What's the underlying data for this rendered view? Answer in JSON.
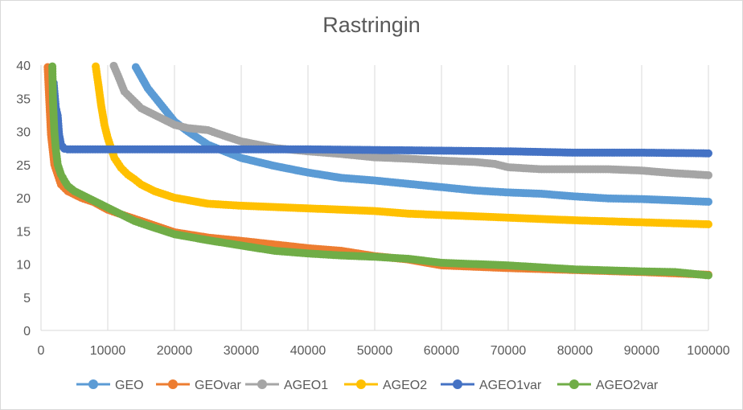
{
  "chart_data": {
    "type": "line",
    "title": "Rastringin",
    "xlabel": "",
    "ylabel": "",
    "xlim": [
      0,
      100000
    ],
    "ylim": [
      0,
      40
    ],
    "xticks": [
      "0",
      "10000",
      "20000",
      "30000",
      "40000",
      "50000",
      "60000",
      "70000",
      "80000",
      "90000",
      "100000"
    ],
    "yticks": [
      "0",
      "5",
      "10",
      "15",
      "20",
      "25",
      "30",
      "35",
      "40"
    ],
    "grid": "vertical",
    "legend_position": "bottom",
    "series": [
      {
        "name": "GEO",
        "color": "#5b9bd5",
        "x": [
          14200,
          16000,
          18000,
          20000,
          22000,
          25000,
          30000,
          35000,
          40000,
          45000,
          50000,
          55000,
          60000,
          65000,
          70000,
          75000,
          80000,
          85000,
          90000,
          95000,
          100000
        ],
        "y": [
          39.7,
          36.5,
          34.0,
          31.5,
          30.0,
          28.0,
          26.0,
          24.8,
          23.8,
          23.0,
          22.6,
          22.1,
          21.6,
          21.1,
          20.8,
          20.6,
          20.2,
          19.9,
          19.8,
          19.6,
          19.4
        ]
      },
      {
        "name": "GEOvar",
        "color": "#ed7d31",
        "x": [
          1000,
          1200,
          1500,
          2000,
          2500,
          3000,
          4000,
          6000,
          8000,
          10000,
          12000,
          15000,
          20000,
          25000,
          30000,
          40000,
          45000,
          50000,
          55000,
          60000,
          70000,
          80000,
          90000,
          100000
        ],
        "y": [
          39.7,
          35.5,
          29.5,
          25.0,
          23.5,
          22.0,
          21.0,
          20.0,
          19.3,
          18.2,
          17.5,
          16.5,
          14.8,
          14.0,
          13.5,
          12.4,
          12.0,
          11.2,
          10.7,
          9.8,
          9.4,
          9.1,
          8.8,
          8.4
        ]
      },
      {
        "name": "AGEO1",
        "color": "#a5a5a5",
        "x": [
          10900,
          11500,
          12500,
          13500,
          15000,
          18000,
          20000,
          22000,
          25000,
          27000,
          30000,
          35000,
          40000,
          45000,
          50000,
          55000,
          60000,
          65000,
          68000,
          70000,
          75000,
          80000,
          85000,
          90000,
          95000,
          100000
        ],
        "y": [
          39.9,
          38.5,
          36.0,
          35.0,
          33.5,
          32.0,
          31.0,
          30.5,
          30.2,
          29.5,
          28.5,
          27.5,
          27.0,
          26.6,
          26.1,
          25.9,
          25.6,
          25.4,
          25.1,
          24.6,
          24.3,
          24.3,
          24.3,
          24.1,
          23.7,
          23.4
        ]
      },
      {
        "name": "AGEO2",
        "color": "#ffc000",
        "x": [
          8200,
          8600,
          9000,
          9500,
          10000,
          11000,
          12000,
          13000,
          14000,
          15000,
          17000,
          20000,
          25000,
          30000,
          40000,
          50000,
          55000,
          60000,
          70000,
          80000,
          90000,
          100000
        ],
        "y": [
          39.8,
          37.0,
          34.0,
          31.0,
          29.0,
          26.0,
          24.5,
          23.5,
          22.8,
          22.0,
          21.0,
          20.0,
          19.1,
          18.8,
          18.4,
          18.0,
          17.6,
          17.4,
          17.0,
          16.6,
          16.3,
          16.0
        ]
      },
      {
        "name": "AGEO1var",
        "color": "#4472c4",
        "x": [
          1900,
          2200,
          2500,
          2700,
          3000,
          3500,
          4000,
          10000,
          20000,
          30000,
          40000,
          50000,
          60000,
          70000,
          80000,
          90000,
          100000
        ],
        "y": [
          37.3,
          33.7,
          32.4,
          29.6,
          28.0,
          27.4,
          27.3,
          27.3,
          27.3,
          27.3,
          27.3,
          27.2,
          27.1,
          27.0,
          26.8,
          26.8,
          26.7
        ]
      },
      {
        "name": "AGEO2var",
        "color": "#70ad47",
        "x": [
          1700,
          1800,
          2000,
          2200,
          2500,
          3000,
          3500,
          4000,
          5000,
          6000,
          7000,
          8000,
          9000,
          10000,
          12000,
          14000,
          16000,
          20000,
          25000,
          30000,
          35000,
          40000,
          45000,
          50000,
          55000,
          60000,
          70000,
          80000,
          90000,
          95000,
          100000
        ],
        "y": [
          39.8,
          34.5,
          30.0,
          27.5,
          25.0,
          23.5,
          22.6,
          21.8,
          21.0,
          20.5,
          20.0,
          19.5,
          19.0,
          18.5,
          17.5,
          16.5,
          15.8,
          14.5,
          13.6,
          12.8,
          12.0,
          11.6,
          11.3,
          11.1,
          10.8,
          10.2,
          9.8,
          9.2,
          8.9,
          8.8,
          8.3
        ]
      }
    ]
  }
}
